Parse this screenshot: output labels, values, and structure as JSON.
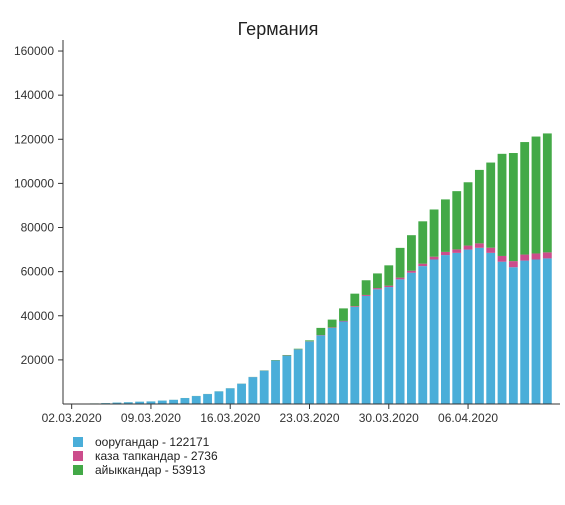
{
  "chart_data": {
    "type": "bar",
    "stacked": true,
    "title": "Германия",
    "xlabel": "",
    "ylabel": "",
    "ylim": [
      0,
      165000
    ],
    "yticks": [
      20000,
      40000,
      60000,
      80000,
      100000,
      120000,
      140000,
      160000
    ],
    "x_tick_labels": [
      "02.03.2020",
      "09.03.2020",
      "16.03.2020",
      "23.03.2020",
      "30.03.2020",
      "06.04.2020"
    ],
    "x_tick_index": [
      0,
      7,
      14,
      21,
      28,
      35
    ],
    "grid": false,
    "legend": "bottom-left",
    "categories": [
      "02.03.2020",
      "03.03.2020",
      "04.03.2020",
      "05.03.2020",
      "06.03.2020",
      "07.03.2020",
      "08.03.2020",
      "09.03.2020",
      "10.03.2020",
      "11.03.2020",
      "12.03.2020",
      "13.03.2020",
      "14.03.2020",
      "15.03.2020",
      "16.03.2020",
      "17.03.2020",
      "18.03.2020",
      "19.03.2020",
      "20.03.2020",
      "21.03.2020",
      "22.03.2020",
      "23.03.2020",
      "24.03.2020",
      "25.03.2020",
      "26.03.2020",
      "27.03.2020",
      "28.03.2020",
      "29.03.2020",
      "30.03.2020",
      "31.03.2020",
      "01.04.2020",
      "02.04.2020",
      "03.04.2020",
      "04.04.2020",
      "05.04.2020",
      "06.04.2020",
      "07.04.2020",
      "08.04.2020",
      "09.04.2020",
      "10.04.2020",
      "11.04.2020",
      "12.04.2020",
      "13.04.2020"
    ],
    "series": [
      {
        "name": "ооругандар - 122171",
        "color": "#4aaed9",
        "values": [
          150,
          180,
          250,
          400,
          650,
          800,
          1050,
          1150,
          1550,
          1900,
          2700,
          3600,
          4500,
          5700,
          7100,
          9200,
          12200,
          15100,
          19700,
          21900,
          24700,
          28300,
          31100,
          34500,
          37400,
          44000,
          49000,
          52000,
          53000,
          56500,
          59500,
          62500,
          65500,
          67500,
          68500,
          70000,
          70800,
          68500,
          64500,
          62000,
          65000,
          65500,
          66000
        ]
      },
      {
        "name": "каза тапкандар - 2736",
        "color": "#cc4d8c",
        "values": [
          0,
          0,
          0,
          0,
          0,
          0,
          2,
          2,
          2,
          3,
          6,
          7,
          9,
          11,
          13,
          24,
          28,
          44,
          67,
          84,
          94,
          123,
          157,
          206,
          267,
          342,
          433,
          533,
          645,
          775,
          920,
          1107,
          1275,
          1444,
          1584,
          1810,
          2016,
          2349,
          2607,
          2767,
          2736,
          2736,
          2736
        ]
      },
      {
        "name": "айыккандар - 53913",
        "color": "#43a947",
        "values": [
          16,
          16,
          16,
          16,
          16,
          16,
          16,
          16,
          16,
          16,
          25,
          46,
          46,
          46,
          46,
          46,
          46,
          105,
          180,
          233,
          266,
          422,
          3243,
          3547,
          5673,
          5673,
          6658,
          6658,
          9211,
          13500,
          16100,
          19200,
          21400,
          23800,
          26400,
          28700,
          33300,
          38600,
          46300,
          49000,
          51000,
          53000,
          53913
        ]
      }
    ]
  }
}
